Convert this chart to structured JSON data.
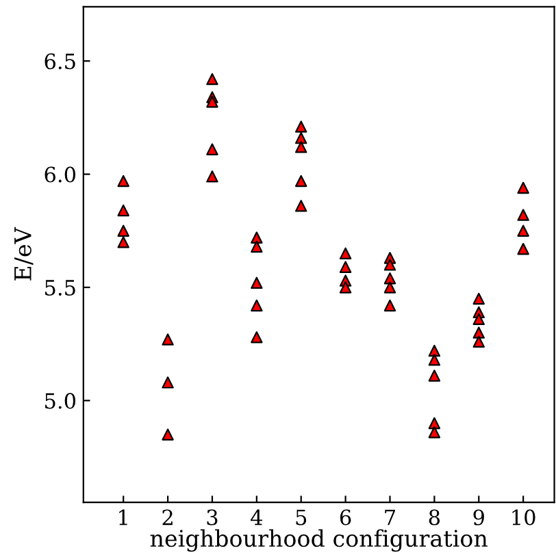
{
  "chart_data": {
    "type": "scatter",
    "xlabel": "neighbourhood configuration",
    "ylabel": "E/eV",
    "series": [
      {
        "color": "#ff0000",
        "x": [
          1,
          1,
          1,
          1,
          2,
          2,
          2,
          3,
          3,
          3,
          3,
          3,
          4,
          4,
          4,
          4,
          4,
          5,
          5,
          5,
          5,
          5,
          6,
          6,
          6,
          6,
          7,
          7,
          7,
          7,
          7,
          8,
          8,
          8,
          8,
          8,
          9,
          9,
          9,
          9,
          9,
          10,
          10,
          10,
          10
        ],
        "values": [
          5.97,
          5.84,
          5.75,
          5.7,
          5.27,
          5.08,
          4.85,
          6.42,
          6.34,
          6.32,
          6.11,
          5.99,
          5.72,
          5.68,
          5.52,
          5.42,
          5.28,
          6.21,
          6.16,
          6.12,
          5.97,
          5.86,
          5.65,
          5.59,
          5.53,
          5.5,
          5.63,
          5.6,
          5.54,
          5.5,
          5.42,
          5.22,
          5.18,
          5.11,
          4.9,
          4.86,
          5.45,
          5.39,
          5.36,
          5.3,
          5.26,
          5.94,
          5.82,
          5.75,
          5.67
        ]
      }
    ],
    "xlim": [
      0.1,
      10.7
    ],
    "xticks": [
      1,
      2,
      3,
      4,
      5,
      6,
      7,
      8,
      9,
      10
    ],
    "ylim": [
      4.55,
      6.74
    ],
    "yticks": [
      {
        "value": 5,
        "label": "5.0"
      },
      {
        "value": 5.5,
        "label": "5.5"
      },
      {
        "value": 6,
        "label": "6.0"
      },
      {
        "value": 6.5,
        "label": "6.5"
      }
    ],
    "marker": "triangle",
    "grid": false,
    "legend": false
  }
}
